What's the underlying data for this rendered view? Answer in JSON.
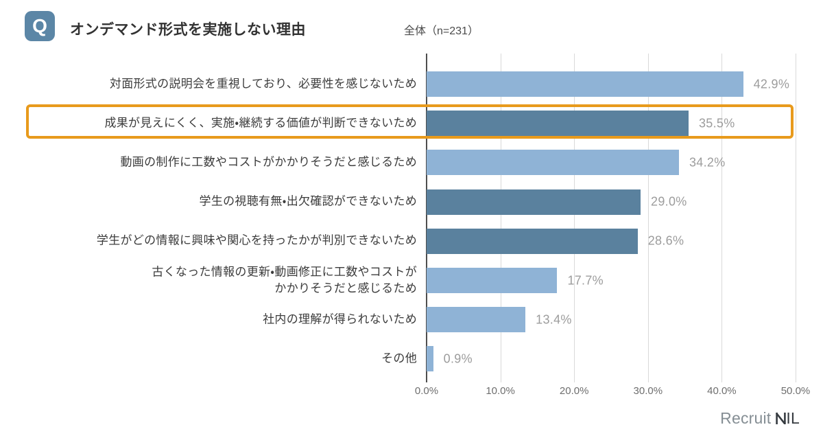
{
  "header": {
    "badge": "Q",
    "title": "オンデマンド形式を実施しない理由",
    "sample": "全体（n=231）"
  },
  "chart_data": {
    "type": "bar",
    "orientation": "horizontal",
    "title": "オンデマンド形式を実施しない理由",
    "subtitle": "全体（n=231）",
    "xlim": [
      0,
      50
    ],
    "x_ticks": [
      "0.0%",
      "10.0%",
      "20.0%",
      "30.0%",
      "40.0%",
      "50.0%"
    ],
    "grid": true,
    "legend": "none",
    "highlighted_index": 1,
    "categories": [
      "対面形式の説明会を重視しており、必要性を感じないため",
      "成果が見えにくく、実施・継続する価値が判断できないため",
      "動画の制作に工数やコストがかかりそうだと感じるため",
      "学生の視聴有無・出欠確認ができないため",
      "学生がどの情報に興味や関心を持ったかが判別できないため",
      "古くなった情報の更新・動画修正に工数やコストが\nかかりそうだと感じるため",
      "社内の理解が得られないため",
      "その他"
    ],
    "values": [
      42.9,
      35.5,
      34.2,
      29.0,
      28.6,
      17.7,
      13.4,
      0.9
    ],
    "value_labels": [
      "42.9%",
      "35.5%",
      "34.2%",
      "29.0%",
      "28.6%",
      "17.7%",
      "13.4%",
      "0.9%"
    ],
    "bar_shades": [
      "light",
      "dark",
      "light",
      "dark",
      "dark",
      "light",
      "light",
      "light"
    ]
  },
  "colors": {
    "bar_light": "#8FB3D6",
    "bar_dark": "#5A819E",
    "highlight_box": "#E89A1C",
    "badge_bg": "#5B86A6",
    "value_label": "#9C9C9C",
    "grid_line": "#D9D9D9",
    "axis_line": "#4D4D4D"
  },
  "footer": {
    "logo_gray": "Recruit",
    "logo_dark_rest": "IL"
  }
}
